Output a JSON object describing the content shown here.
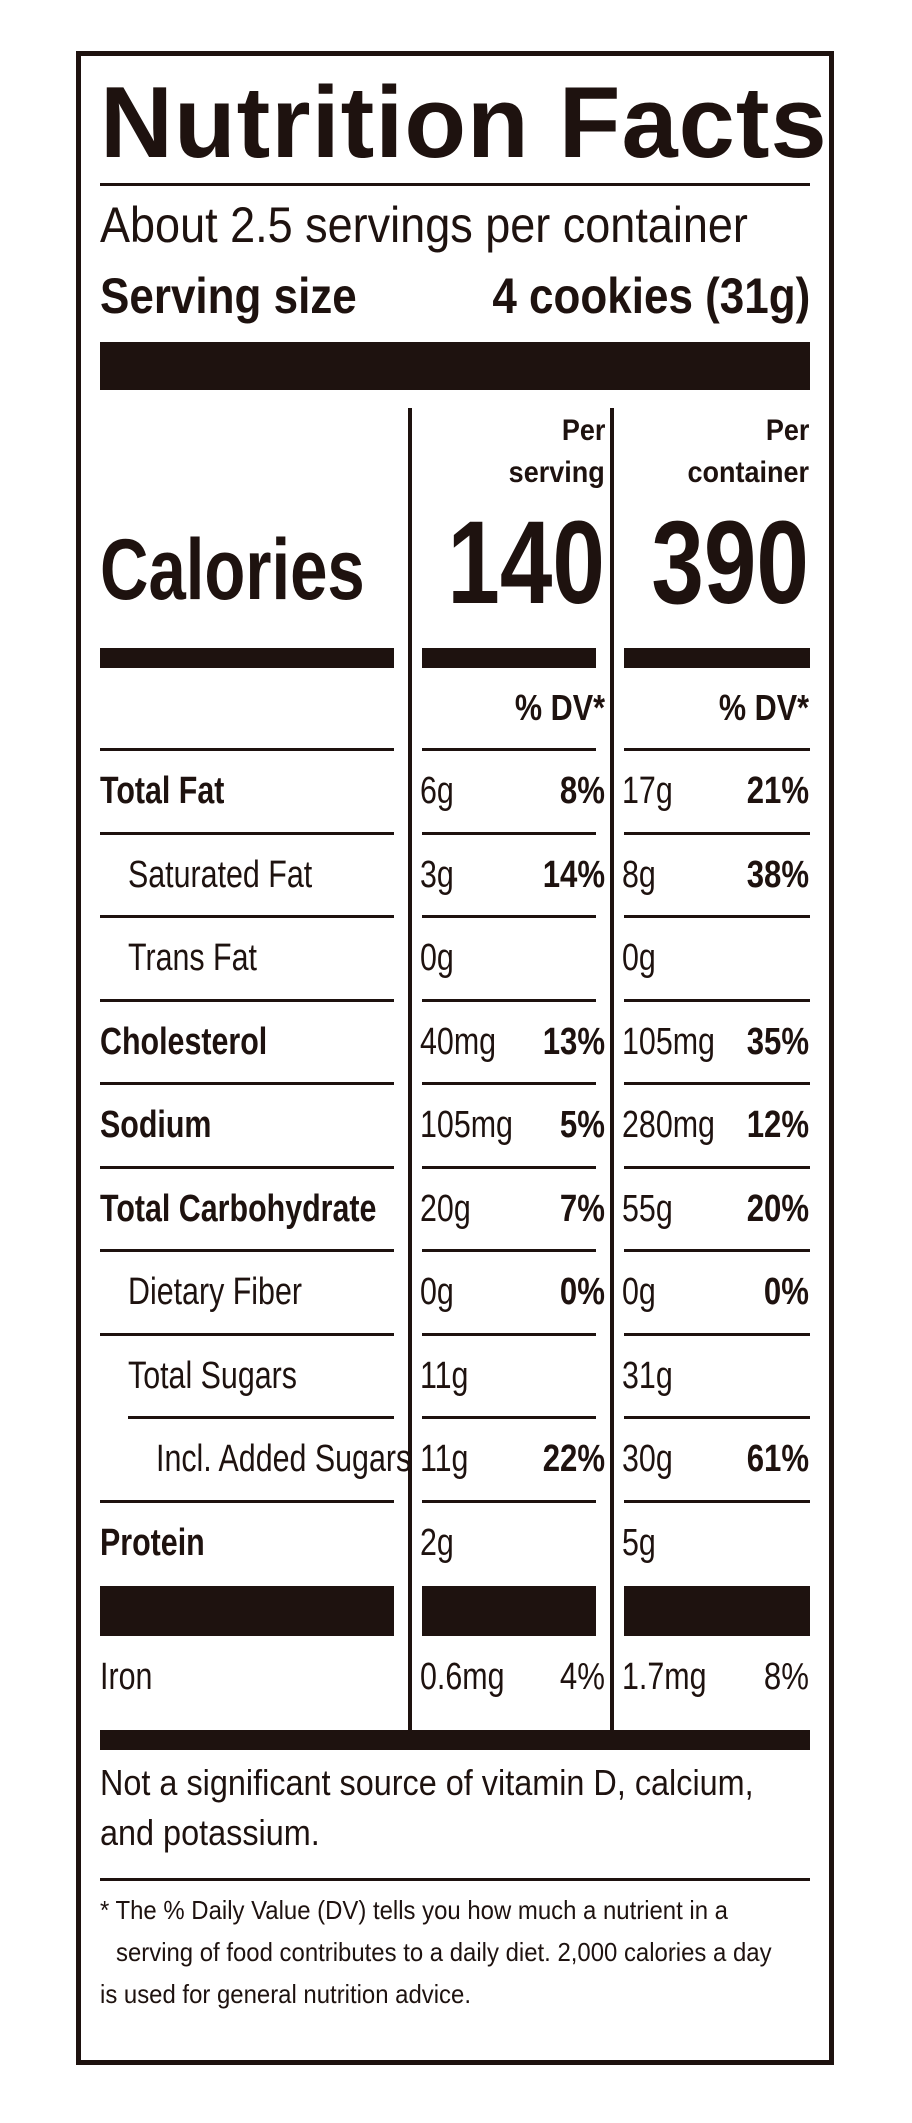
{
  "label": {
    "title": "Nutrition Facts",
    "servings_per_container": "About 2.5 servings per container",
    "serving_size_label": "Serving size",
    "serving_size_value": "4 cookies (31g)",
    "columns": [
      {
        "header_line1": "Per",
        "header_line2": "serving",
        "calories": "140",
        "dv_header": "% DV*"
      },
      {
        "header_line1": "Per",
        "header_line2": "container",
        "calories": "390",
        "dv_header": "% DV*"
      }
    ],
    "calories_label": "Calories",
    "rows": [
      {
        "name": "Total Fat",
        "bold": true,
        "indent": 0,
        "serving": {
          "amount": "6g",
          "dv": "8%"
        },
        "container": {
          "amount": "17g",
          "dv": "21%"
        }
      },
      {
        "name": "Saturated Fat",
        "bold": false,
        "indent": 1,
        "serving": {
          "amount": "3g",
          "dv": "14%"
        },
        "container": {
          "amount": "8g",
          "dv": "38%"
        }
      },
      {
        "name": "Trans Fat",
        "bold": false,
        "indent": 1,
        "serving": {
          "amount": "0g",
          "dv": ""
        },
        "container": {
          "amount": "0g",
          "dv": ""
        }
      },
      {
        "name": "Cholesterol",
        "bold": true,
        "indent": 0,
        "serving": {
          "amount": "40mg",
          "dv": "13%"
        },
        "container": {
          "amount": "105mg",
          "dv": "35%"
        }
      },
      {
        "name": "Sodium",
        "bold": true,
        "indent": 0,
        "serving": {
          "amount": "105mg",
          "dv": "5%"
        },
        "container": {
          "amount": "280mg",
          "dv": "12%"
        }
      },
      {
        "name": "Total Carbohydrate",
        "bold": true,
        "indent": 0,
        "serving": {
          "amount": "20g",
          "dv": "7%"
        },
        "container": {
          "amount": "55g",
          "dv": "20%"
        }
      },
      {
        "name": "Dietary Fiber",
        "bold": false,
        "indent": 1,
        "serving": {
          "amount": "0g",
          "dv": "0%"
        },
        "container": {
          "amount": "0g",
          "dv": "0%"
        }
      },
      {
        "name": "Total Sugars",
        "bold": false,
        "indent": 1,
        "serving": {
          "amount": "11g",
          "dv": ""
        },
        "container": {
          "amount": "31g",
          "dv": ""
        }
      },
      {
        "name": "Incl. Added Sugars",
        "bold": false,
        "indent": 2,
        "serving": {
          "amount": "11g",
          "dv": "22%"
        },
        "container": {
          "amount": "30g",
          "dv": "61%"
        }
      },
      {
        "name": "Protein",
        "bold": true,
        "indent": 0,
        "serving": {
          "amount": "2g",
          "dv": ""
        },
        "container": {
          "amount": "5g",
          "dv": ""
        }
      }
    ],
    "minerals": [
      {
        "name": "Iron",
        "serving": {
          "amount": "0.6mg",
          "dv": "4%"
        },
        "container": {
          "amount": "1.7mg",
          "dv": "8%"
        }
      }
    ],
    "not_significant_line1": "Not a significant source of vitamin D, calcium,",
    "not_significant_line2": "and potassium.",
    "footnote_line1": "* The % Daily Value (DV) tells you how much a nutrient in a",
    "footnote_line2": "serving of food contributes to a daily diet. 2,000 calories a day",
    "footnote_line3": "is used for general nutrition advice.",
    "ink_color": "#1e120f"
  }
}
